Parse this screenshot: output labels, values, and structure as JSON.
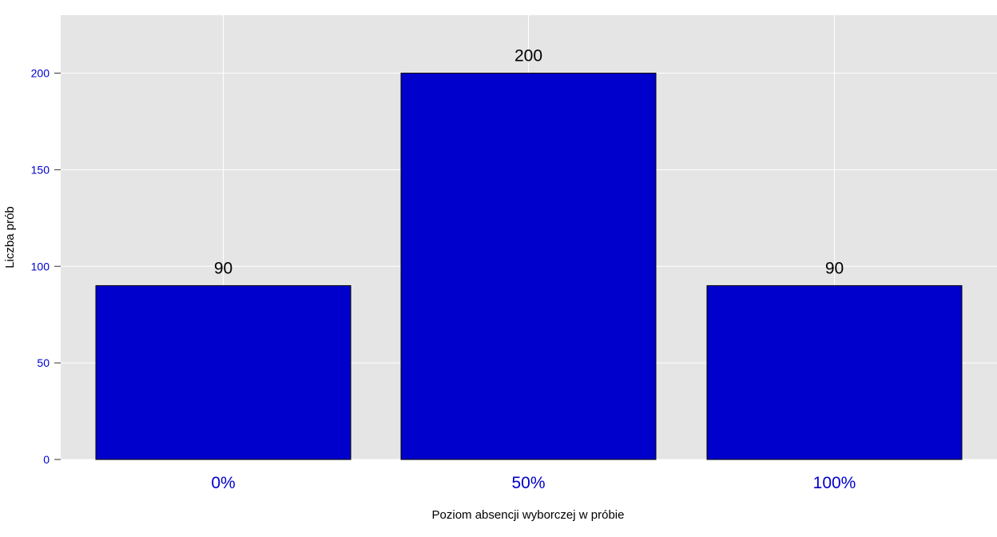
{
  "chart_data": {
    "type": "bar",
    "categories": [
      "0%",
      "50%",
      "100%"
    ],
    "values": [
      90,
      200,
      90
    ],
    "data_labels": [
      "90",
      "200",
      "90"
    ],
    "xlabel": "Poziom absencji wyborczej w próbie",
    "ylabel": "Liczba prób",
    "ylim": [
      0,
      230
    ],
    "yticks": [
      0,
      50,
      100,
      150,
      200
    ],
    "grid": true,
    "legend": "none",
    "colors": {
      "bar_fill": "#0000cc",
      "bar_stroke": "#000000",
      "panel_background": "#e5e5e5",
      "grid": "#ffffff",
      "tick_label": "#0000cc"
    }
  }
}
